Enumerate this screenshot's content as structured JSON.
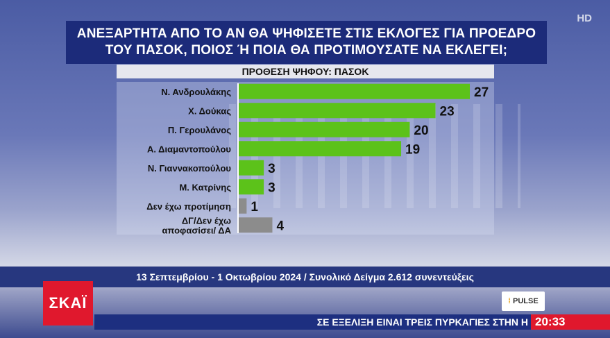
{
  "overlay": {
    "hd_badge": "HD",
    "title_line1": "ΑΝΕΞΑΡΤΗΤΑ ΑΠΟ ΤΟ ΑΝ ΘΑ ΨΗΦΙΣΕΤΕ ΣΤΙΣ ΕΚΛΟΓΕΣ ΓΙΑ ΠΡΟΕΔΡΟ",
    "title_line2": "ΤΟΥ ΠΑΣΟΚ, ΠΟΙΟΣ Ή ΠΟΙΑ ΘΑ ΠΡΟΤΙΜΟΥΣΑΤΕ ΝΑ ΕΚΛΕΓΕΙ;",
    "subtitle": "ΠΡΟΘΕΣΗ ΨΗΦΟΥ: ΠΑΣΟΚ",
    "info": "13 Σεπτεμβρίου - 1 Οκτωβρίου 2024 / Συνολικό Δείγμα 2.612 συνεντεύξεις",
    "channel_logo": "ΣΚΑΪ",
    "pollster_logo": "PULSE",
    "ticker": "ΣΕ ΕΞΕΛΙΞΗ ΕΙΝΑΙ ΤΡΕΙΣ ΠΥΡΚΑΓΙΕΣ ΣΤΗΝ Η",
    "clock": "20:33"
  },
  "chart_data": {
    "type": "bar",
    "orientation": "horizontal",
    "title": "ΑΝΕΞΑΡΤΗΤΑ ΑΠΟ ΤΟ ΑΝ ΘΑ ΨΗΦΙΣΕΤΕ ΣΤΙΣ ΕΚΛΟΓΕΣ ΓΙΑ ΠΡΟΕΔΡΟ ΤΟΥ ΠΑΣΟΚ, ΠΟΙΟΣ Ή ΠΟΙΑ ΘΑ ΠΡΟΤΙΜΟΥΣΑΤΕ ΝΑ ΕΚΛΕΓΕΙ;",
    "subtitle": "ΠΡΟΘΕΣΗ ΨΗΦΟΥ: ΠΑΣΟΚ",
    "categories": [
      [
        "Ν. Ανδρουλάκης"
      ],
      [
        "Χ. Δούκας"
      ],
      [
        "Π. Γερουλάνος"
      ],
      [
        "Α. Διαμαντοπούλου"
      ],
      [
        "Ν. Γιαννακοπούλου"
      ],
      [
        "Μ. Κατρίνης"
      ],
      [
        "Δεν έχω προτίμηση"
      ],
      [
        "ΔΓ/Δεν έχω",
        "αποφασίσει/ ΔΑ"
      ]
    ],
    "values": [
      27,
      23,
      20,
      19,
      3,
      3,
      1,
      4
    ],
    "bar_colors": [
      "#5cc21a",
      "#5cc21a",
      "#5cc21a",
      "#5cc21a",
      "#5cc21a",
      "#5cc21a",
      "#8c8c8c",
      "#8c8c8c"
    ],
    "xlim": [
      0,
      27
    ],
    "grid": false,
    "data_labels": true
  }
}
